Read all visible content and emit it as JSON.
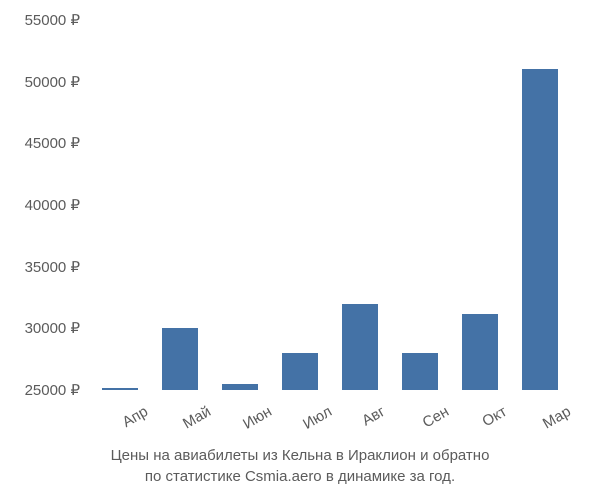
{
  "chart": {
    "type": "bar",
    "categories": [
      "Апр",
      "Май",
      "Июн",
      "Июл",
      "Авг",
      "Сен",
      "Окт",
      "Мар"
    ],
    "values": [
      25200,
      30000,
      25500,
      28000,
      32000,
      28000,
      31200,
      51000
    ],
    "bar_color": "#4472a6",
    "background_color": "#ffffff",
    "ylim": [
      25000,
      55000
    ],
    "ytick_step": 5000,
    "ytick_labels": [
      "25000 ₽",
      "30000 ₽",
      "35000 ₽",
      "40000 ₽",
      "45000 ₽",
      "50000 ₽",
      "55000 ₽"
    ],
    "label_color": "#5b5b5b",
    "label_fontsize": 15,
    "bar_width_ratio": 0.6,
    "caption_line1": "Цены на авиабилеты из Кельна в Ираклион и обратно",
    "caption_line2": "по статистике Csmia.aero в динамике за год."
  }
}
